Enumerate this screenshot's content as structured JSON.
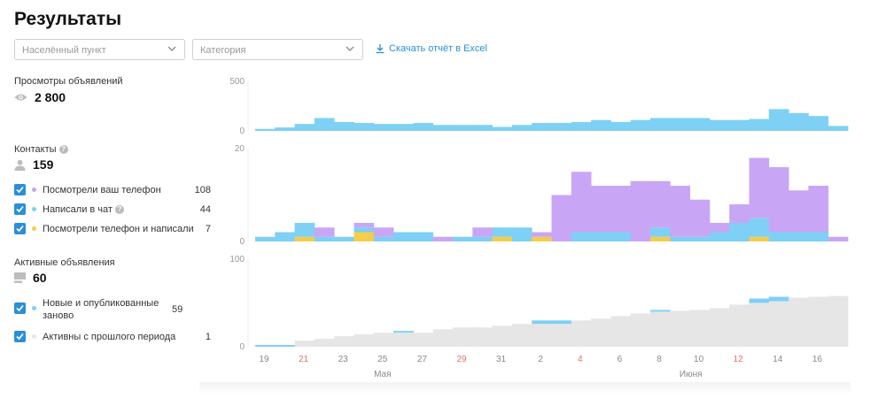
{
  "page": {
    "title": "Результаты"
  },
  "filters": {
    "locality_placeholder": "Населённый пункт",
    "category_placeholder": "Категория",
    "download_label": "Скачать отчёт в Excel"
  },
  "views": {
    "label": "Просмотры объявлений",
    "total": "2 800",
    "icon": "eye-icon"
  },
  "contacts": {
    "label": "Контакты",
    "total": "159",
    "icon": "user-icon",
    "items": [
      {
        "label": "Посмотрели ваш телефон",
        "value": "108",
        "color": "#c8a6f5",
        "has_help": false
      },
      {
        "label": "Написали в чат",
        "value": "44",
        "color": "#7ed0f5",
        "has_help": true
      },
      {
        "label": "Посмотрели телефон и написали",
        "value": "7",
        "color": "#f6cd4a",
        "has_help": false
      }
    ]
  },
  "active": {
    "label": "Активные объявления",
    "total": "60",
    "icon": "listing-icon",
    "items": [
      {
        "label": "Новые и опубликованные заново",
        "value": "59",
        "color": "#7ed0f5"
      },
      {
        "label": "Активны с прошлого периода",
        "value": "1",
        "color": "#e6e6e6"
      }
    ]
  },
  "chart_data": [
    {
      "type": "bar",
      "title": "Просмотры объявлений",
      "ylim": [
        0,
        500
      ],
      "yticks": [
        "500",
        "0"
      ],
      "series": [
        {
          "color": "#7ed0f5",
          "values": [
            20,
            35,
            70,
            130,
            90,
            80,
            70,
            70,
            80,
            60,
            60,
            60,
            40,
            60,
            80,
            80,
            90,
            110,
            90,
            110,
            130,
            130,
            130,
            110,
            110,
            120,
            220,
            180,
            150,
            50
          ]
        }
      ]
    },
    {
      "type": "bar",
      "title": "Контакты",
      "ylim": [
        0,
        20
      ],
      "yticks": [
        "20",
        "0"
      ],
      "series": [
        {
          "name": "Посмотрели ваш телефон",
          "color": "#c8a6f5",
          "values": [
            0,
            0,
            0,
            2,
            0,
            1,
            2,
            0,
            0,
            1,
            0,
            2,
            0,
            0,
            1,
            10,
            13,
            10,
            10,
            13,
            10,
            11,
            8,
            2,
            4,
            13,
            14,
            9,
            10,
            1
          ]
        },
        {
          "name": "Написали в чат",
          "color": "#7ed0f5",
          "values": [
            1,
            2,
            3,
            1,
            1,
            1,
            1,
            2,
            2,
            0,
            1,
            1,
            2,
            3,
            0,
            0,
            2,
            2,
            2,
            0,
            2,
            1,
            1,
            2,
            4,
            4,
            2,
            2,
            2,
            0
          ]
        },
        {
          "name": "Посмотрели телефон и написали",
          "color": "#f6cd4a",
          "values": [
            0,
            0,
            1,
            0,
            0,
            2,
            0,
            0,
            0,
            0,
            0,
            0,
            1,
            0,
            1,
            0,
            0,
            0,
            0,
            0,
            1,
            0,
            0,
            0,
            0,
            1,
            0,
            0,
            0,
            0
          ]
        }
      ]
    },
    {
      "type": "bar",
      "title": "Активные объявления",
      "ylim": [
        0,
        100
      ],
      "yticks": [
        "100",
        "0"
      ],
      "series": [
        {
          "name": "Новые и опубликованные заново",
          "color": "#7ed0f5",
          "values": [
            2,
            2,
            0,
            0,
            0,
            0,
            0,
            2,
            0,
            0,
            0,
            0,
            0,
            0,
            4,
            4,
            0,
            0,
            0,
            0,
            2,
            0,
            0,
            0,
            0,
            5,
            5,
            0,
            0,
            0
          ]
        },
        {
          "name": "Активны с прошлого периода",
          "color": "#e6e6e6",
          "values": [
            0,
            0,
            7,
            9,
            12,
            14,
            16,
            16,
            16,
            20,
            22,
            22,
            24,
            26,
            26,
            26,
            30,
            32,
            35,
            38,
            40,
            41,
            42,
            44,
            48,
            50,
            52,
            56,
            57,
            58
          ]
        }
      ]
    }
  ],
  "x_axis": {
    "ticks": [
      {
        "label": "19",
        "weekend": false
      },
      {
        "label": "21",
        "weekend": true
      },
      {
        "label": "23",
        "weekend": false
      },
      {
        "label": "25",
        "weekend": false
      },
      {
        "label": "27",
        "weekend": false
      },
      {
        "label": "29",
        "weekend": true
      },
      {
        "label": "31",
        "weekend": false
      },
      {
        "label": "2",
        "weekend": false
      },
      {
        "label": "4",
        "weekend": true
      },
      {
        "label": "6",
        "weekend": false
      },
      {
        "label": "8",
        "weekend": false
      },
      {
        "label": "10",
        "weekend": false
      },
      {
        "label": "12",
        "weekend": true
      },
      {
        "label": "14",
        "weekend": false
      },
      {
        "label": "16",
        "weekend": false
      }
    ],
    "months": [
      {
        "label": "Мая",
        "at_tick": 3
      },
      {
        "label": "Июня",
        "at_tick": 10.8
      }
    ],
    "weekend_color": "#e0706a"
  }
}
